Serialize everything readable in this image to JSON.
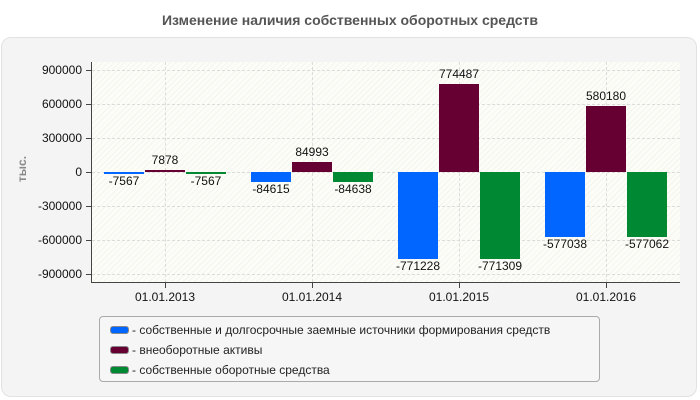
{
  "chart_data": {
    "type": "bar",
    "title": "Изменение наличия собственных оборотных средств",
    "xlabel": "",
    "ylabel": "тыс.",
    "ylim": [
      -900000,
      900000
    ],
    "yticks": [
      "900000",
      "600000",
      "300000",
      "0",
      "-300000",
      "-600000",
      "-900000"
    ],
    "categories": [
      "01.01.2013",
      "01.01.2014",
      "01.01.2015",
      "01.01.2016"
    ],
    "series": [
      {
        "name": "- собственные и долгосрочные заемные источники формирования средств",
        "color": "#0066ff",
        "values": [
          -7567,
          -84615,
          -771228,
          -577038
        ]
      },
      {
        "name": "- внеоборотные активы",
        "color": "#660033",
        "values": [
          7878,
          84993,
          774487,
          580180
        ]
      },
      {
        "name": "- собственные оборотные средства",
        "color": "#008833",
        "values": [
          -7567,
          -84638,
          -771309,
          -577062
        ]
      }
    ],
    "grid": true,
    "legend_position": "bottom"
  }
}
